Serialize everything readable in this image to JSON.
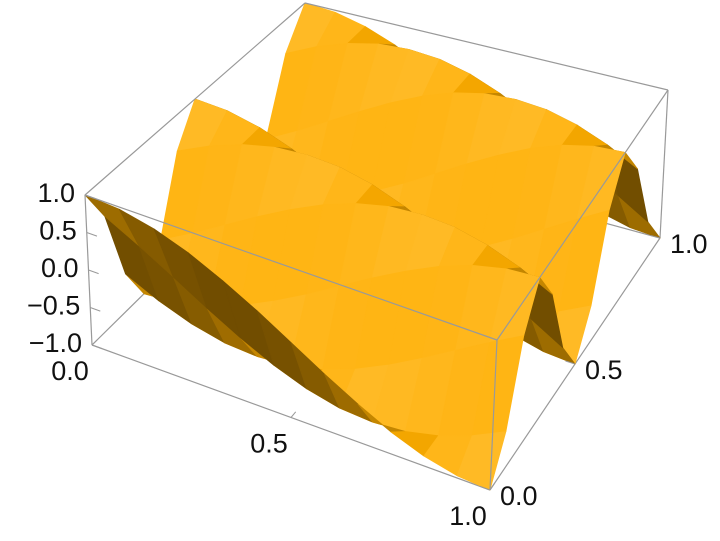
{
  "chart_data": {
    "type": "surface",
    "x": [
      0,
      0.083,
      0.167,
      0.25,
      0.333,
      0.417,
      0.5,
      0.583,
      0.667,
      0.75,
      0.833,
      0.917,
      1
    ],
    "y": [
      0,
      0.083,
      0.167,
      0.25,
      0.333,
      0.417,
      0.5,
      0.583,
      0.667,
      0.75,
      0.833,
      0.917,
      1
    ],
    "z": [
      [
        1,
        0.97,
        0.87,
        0.71,
        0.5,
        0.26,
        0,
        -0.26,
        -0.5,
        -0.71,
        -0.87,
        -0.97,
        -1
      ],
      [
        0.5,
        0.26,
        0,
        -0.26,
        -0.5,
        -0.71,
        -0.87,
        -0.97,
        -1,
        -0.97,
        -0.87,
        -0.71,
        -0.5
      ],
      [
        -0.5,
        -0.71,
        -0.87,
        -0.97,
        -1,
        -0.97,
        -0.87,
        -0.71,
        -0.5,
        -0.26,
        0,
        0.26,
        0.5
      ],
      [
        -1,
        -0.97,
        -0.87,
        -0.71,
        -0.5,
        -0.26,
        0,
        0.26,
        0.5,
        0.71,
        0.87,
        0.97,
        1
      ],
      [
        -0.5,
        -0.26,
        0,
        0.26,
        0.5,
        0.71,
        0.87,
        0.97,
        1,
        0.97,
        0.87,
        0.71,
        0.5
      ],
      [
        0.5,
        0.71,
        0.87,
        0.97,
        1,
        0.97,
        0.87,
        0.71,
        0.5,
        0.26,
        0,
        -0.26,
        -0.5
      ],
      [
        1,
        0.97,
        0.87,
        0.71,
        0.5,
        0.26,
        0,
        -0.26,
        -0.5,
        -0.71,
        -0.87,
        -0.97,
        -1
      ],
      [
        0.5,
        0.26,
        0,
        -0.26,
        -0.5,
        -0.71,
        -0.87,
        -0.97,
        -1,
        -0.97,
        -0.87,
        -0.71,
        -0.5
      ],
      [
        -0.5,
        -0.71,
        -0.87,
        -0.97,
        -1,
        -0.97,
        -0.87,
        -0.71,
        -0.5,
        -0.26,
        0,
        0.26,
        0.5
      ],
      [
        -1,
        -0.97,
        -0.87,
        -0.71,
        -0.5,
        -0.26,
        0,
        0.26,
        0.5,
        0.71,
        0.87,
        0.97,
        1
      ],
      [
        -0.5,
        -0.26,
        0,
        0.26,
        0.5,
        0.71,
        0.87,
        0.97,
        1,
        0.97,
        0.87,
        0.71,
        0.5
      ],
      [
        0.5,
        0.71,
        0.87,
        0.97,
        1,
        0.97,
        0.87,
        0.71,
        0.5,
        0.26,
        0,
        -0.26,
        -0.5
      ],
      [
        1,
        0.97,
        0.87,
        0.71,
        0.5,
        0.26,
        0,
        -0.26,
        -0.5,
        -0.71,
        -0.87,
        -0.97,
        -1
      ]
    ],
    "color": "#f7a900",
    "xlim": [
      0,
      1
    ],
    "ylim": [
      0,
      1
    ],
    "zlim": [
      -1,
      1
    ],
    "xticks": [
      {
        "value": 0,
        "label": "0.0"
      },
      0.5,
      {
        "value": 1,
        "label": "1.0"
      }
    ],
    "yticks": [
      {
        "value": 0,
        "label": "0.0"
      },
      0.5,
      {
        "value": 1,
        "label": "1.0"
      }
    ],
    "zticks": [
      {
        "value": -1,
        "label": "−1.0"
      },
      {
        "value": -0.5,
        "label": "−0.5"
      },
      {
        "value": 0,
        "label": "0.0"
      },
      0.5,
      {
        "value": 1,
        "label": "1.0"
      }
    ]
  }
}
